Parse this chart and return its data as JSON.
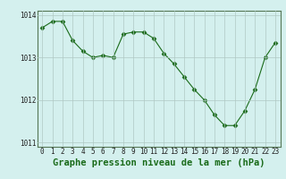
{
  "hours": [
    0,
    1,
    2,
    3,
    4,
    5,
    6,
    7,
    8,
    9,
    10,
    11,
    12,
    13,
    14,
    15,
    16,
    17,
    18,
    19,
    20,
    21,
    22,
    23
  ],
  "pressure": [
    1013.7,
    1013.85,
    1013.85,
    1013.4,
    1013.15,
    1013.0,
    1013.05,
    1013.0,
    1013.55,
    1013.6,
    1013.6,
    1013.45,
    1013.1,
    1012.85,
    1012.55,
    1012.25,
    1012.0,
    1011.65,
    1011.4,
    1011.4,
    1011.75,
    1012.25,
    1013.0,
    1013.35
  ],
  "line_color": "#1a6b1a",
  "marker": "D",
  "marker_size": 2.5,
  "bg_color": "#d4f0ee",
  "grid_color": "#b0c8c4",
  "xlabel": "Graphe pression niveau de la mer (hPa)",
  "xlabel_fontsize": 7.5,
  "ylim": [
    1010.9,
    1014.1
  ],
  "yticks": [
    1011,
    1012,
    1013,
    1014
  ],
  "xticks": [
    0,
    1,
    2,
    3,
    4,
    5,
    6,
    7,
    8,
    9,
    10,
    11,
    12,
    13,
    14,
    15,
    16,
    17,
    18,
    19,
    20,
    21,
    22,
    23
  ],
  "tick_fontsize": 5.5,
  "border_color": "#557755"
}
